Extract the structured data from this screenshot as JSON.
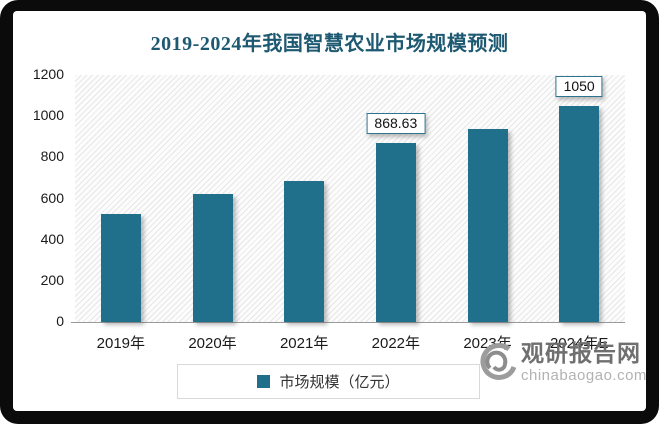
{
  "page": {
    "frame_color": "#0b0b0b",
    "canvas_color": "#ffffff"
  },
  "chart_data": {
    "type": "bar",
    "title": "2019-2024年我国智慧农业市场规模预测",
    "title_color": "#1e5972",
    "categories": [
      "2019年",
      "2020年",
      "2021年",
      "2022年",
      "2023年",
      "2024年E"
    ],
    "series": [
      {
        "name": "市场规模（亿元）",
        "values": [
          525,
          620,
          685,
          868.63,
          940,
          1050
        ]
      }
    ],
    "point_labels": [
      "",
      "",
      "",
      "868.63",
      "",
      "1050"
    ],
    "ylim": [
      0,
      1200
    ],
    "yticks": [
      "0",
      "200",
      "400",
      "600",
      "800",
      "1000",
      "1200"
    ],
    "bar_color": "#20708c",
    "grid": false,
    "plot_background": "light-diagonal-hatch",
    "legend": {
      "position": "bottom",
      "items": [
        {
          "label": "市场规模（亿元）",
          "swatch_color": "#20708c"
        }
      ]
    }
  },
  "watermark": {
    "logo": "swirl-g-icon",
    "site_name": "观研报告网",
    "site_url": "chinabaogao.com"
  }
}
